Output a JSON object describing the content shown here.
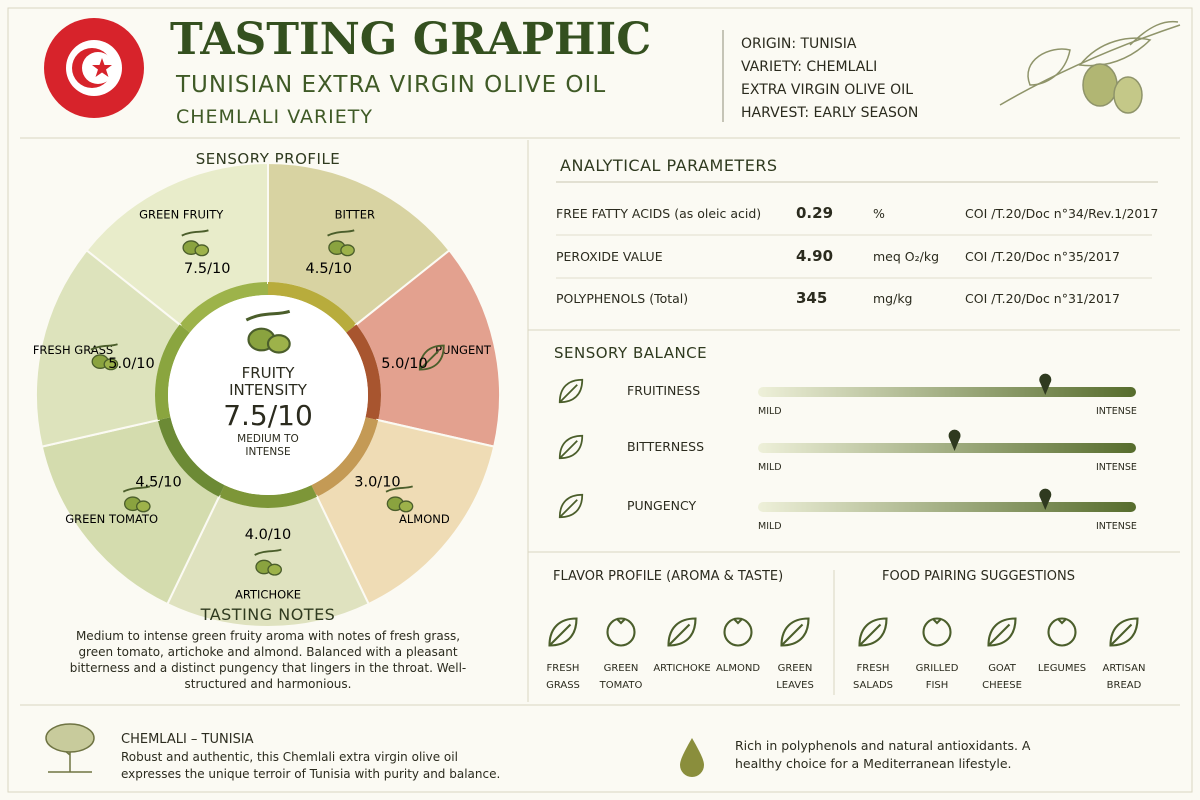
{
  "header": {
    "title": "TASTING GRAPHIC",
    "subtitle": "TUNISIAN EXTRA VIRGIN OLIVE OIL",
    "variety": "CHEMLALI VARIETY",
    "facts": [
      "ORIGIN: TUNISIA",
      "VARIETY: CHEMLALI",
      "EXTRA VIRGIN OLIVE OIL",
      "HARVEST: EARLY SEASON"
    ]
  },
  "sensory_profile": {
    "title": "SENSORY PROFILE",
    "attributes": [
      {
        "name": "GREEN FRUITY",
        "score": "7.5/10",
        "color": "#e8ecca"
      },
      {
        "name": "BITTER",
        "score": "4.5/10",
        "color": "#d8d3a2"
      },
      {
        "name": "PUNGENT",
        "score": "5.0/10",
        "color": "#e3a18f"
      },
      {
        "name": "ALMOND",
        "score": "3.0/10",
        "color": "#efdcb5"
      },
      {
        "name": "ARTICHOKE",
        "score": "4.0/10",
        "color": "#dfe2bf"
      },
      {
        "name": "GREEN TOMATO",
        "score": "4.5/10",
        "color": "#d4dcae"
      },
      {
        "name": "FRESH GRASS",
        "score": "5.0/10",
        "color": "#dde3bc"
      }
    ],
    "center": {
      "label": "FRUITY INTENSITY",
      "score": "7.5/10",
      "level": "MEDIUM TO INTENSE"
    }
  },
  "tasting_notes": {
    "title": "TASTING NOTES",
    "text": "Medium to intense green fruity aroma with notes of fresh grass, green tomato, artichoke and almond. Balanced with a pleasant bitterness and a distinct pungency that lingers in the throat. Well-structured and harmonious."
  },
  "analytical": {
    "title": "ANALYTICAL PARAMETERS",
    "rows": [
      [
        "FREE FATTY ACIDS (as oleic acid)",
        "0.29",
        "%",
        "COI /T.20/Doc n°34/Rev.1/2017"
      ],
      [
        "PEROXIDE VALUE",
        "4.90",
        "meq O₂/kg",
        "COI /T.20/Doc n°35/2017"
      ],
      [
        "POLYPHENOLS (Total)",
        "345",
        "mg/kg",
        "COI /T.20/Doc n°31/2017"
      ]
    ]
  },
  "balance": {
    "title": "SENSORY BALANCE",
    "scale": [
      "MILD",
      "INTENSE"
    ],
    "rows": [
      {
        "name": "FRUITINESS",
        "level": 0.76
      },
      {
        "name": "BITTERNESS",
        "level": 0.52
      },
      {
        "name": "PUNGENCY",
        "level": 0.76
      }
    ]
  },
  "flavor": {
    "title": "FLAVOR PROFILE (AROMA & TASTE)",
    "items": [
      "FRESH GRASS",
      "GREEN TOMATO",
      "ARTICHOKE",
      "ALMOND",
      "GREEN LEAVES"
    ]
  },
  "pairing": {
    "title": "FOOD PAIRING SUGGESTIONS",
    "items": [
      "FRESH SALADS",
      "GRILLED FISH",
      "GOAT CHEESE",
      "LEGUMES",
      "ARTISAN BREAD"
    ]
  },
  "footer": {
    "title": "CHEMLALI – TUNISIA",
    "text": "Robust and authentic, this Chemlali extra virgin olive oil expresses the unique terroir of Tunisia with purity and balance.",
    "health": "Rich in polyphenols and natural antioxidants. A healthy choice for a Mediterranean lifestyle."
  }
}
